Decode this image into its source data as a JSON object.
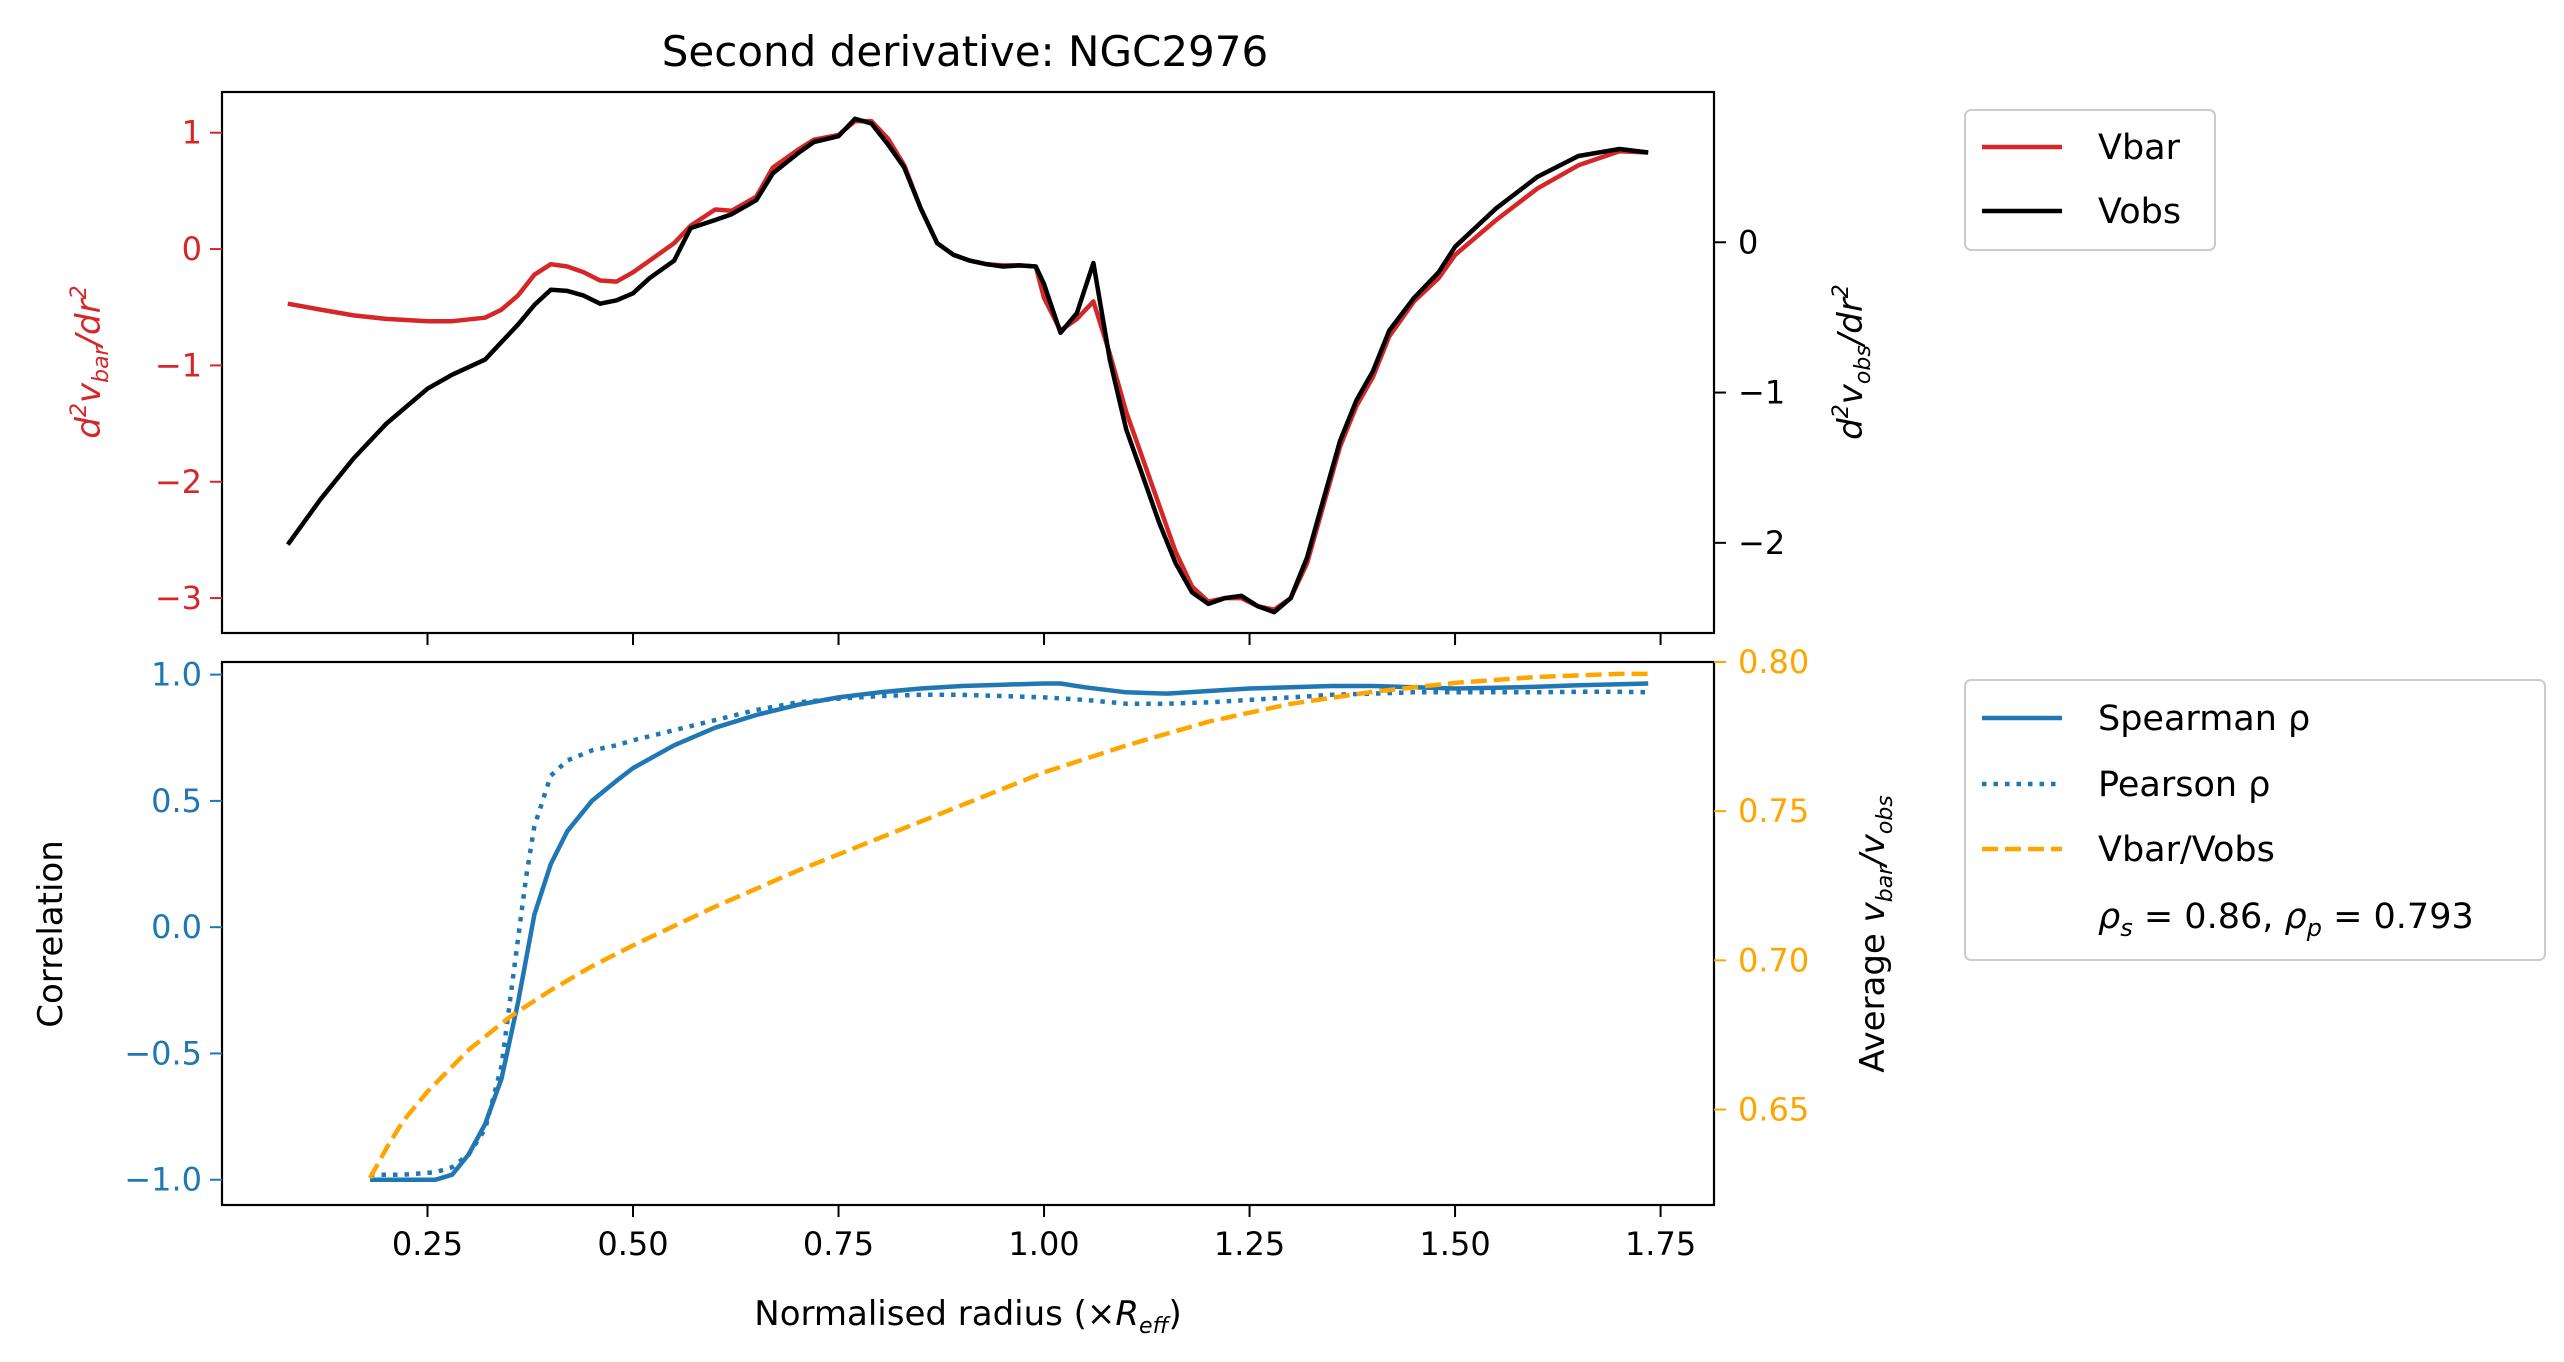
{
  "colors": {
    "vbar": "#d62728",
    "vobs": "#000000",
    "corr": "#1f77b4",
    "ratio": "#ffa500"
  },
  "chart_data": [
    {
      "type": "line",
      "title": "Second derivative: NGC2976",
      "ylabel_left": {
        "base": "d",
        "sup": "2",
        "v": "v",
        "sub": "bar",
        "rest": "/dr",
        "sup2": "2"
      },
      "ylabel_right": {
        "base": "d",
        "sup": "2",
        "v": "v",
        "sub": "obs",
        "rest": "/dr",
        "sup2": "2"
      },
      "xlim": [
        0.0,
        1.815
      ],
      "ylim_left": [
        -3.3,
        1.35
      ],
      "ylim_right": [
        -2.6,
        1.0
      ],
      "yticks_left": [
        1,
        0,
        -1,
        -2,
        -3
      ],
      "yticks_left_labels": [
        "1",
        "0",
        "−1",
        "−2",
        "−3"
      ],
      "yticks_right": [
        0,
        -1,
        -2
      ],
      "yticks_right_labels": [
        "0",
        "−1",
        "−2"
      ],
      "series": [
        {
          "name": "Vbar",
          "axis": "left",
          "style": "solid",
          "color": "#d62728",
          "x": [
            0.08,
            0.12,
            0.16,
            0.2,
            0.25,
            0.28,
            0.32,
            0.34,
            0.36,
            0.38,
            0.4,
            0.42,
            0.44,
            0.46,
            0.48,
            0.5,
            0.52,
            0.55,
            0.57,
            0.6,
            0.62,
            0.65,
            0.67,
            0.7,
            0.72,
            0.75,
            0.77,
            0.79,
            0.81,
            0.83,
            0.85,
            0.87,
            0.89,
            0.91,
            0.93,
            0.95,
            0.97,
            0.99,
            1.0,
            1.02,
            1.04,
            1.06,
            1.08,
            1.1,
            1.12,
            1.14,
            1.16,
            1.18,
            1.2,
            1.22,
            1.24,
            1.26,
            1.28,
            1.3,
            1.32,
            1.34,
            1.36,
            1.38,
            1.4,
            1.42,
            1.45,
            1.48,
            1.5,
            1.55,
            1.6,
            1.65,
            1.7,
            1.735
          ],
          "y": [
            -0.47,
            -0.52,
            -0.57,
            -0.6,
            -0.62,
            -0.62,
            -0.59,
            -0.52,
            -0.4,
            -0.22,
            -0.13,
            -0.15,
            -0.2,
            -0.27,
            -0.28,
            -0.2,
            -0.1,
            0.05,
            0.2,
            0.34,
            0.33,
            0.45,
            0.7,
            0.85,
            0.94,
            0.98,
            1.1,
            1.1,
            0.95,
            0.72,
            0.35,
            0.05,
            -0.05,
            -0.1,
            -0.13,
            -0.14,
            -0.14,
            -0.15,
            -0.42,
            -0.7,
            -0.6,
            -0.45,
            -0.9,
            -1.4,
            -1.8,
            -2.2,
            -2.6,
            -2.9,
            -3.03,
            -3.0,
            -3.0,
            -3.07,
            -3.1,
            -3.0,
            -2.7,
            -2.2,
            -1.7,
            -1.35,
            -1.1,
            -0.75,
            -0.45,
            -0.25,
            -0.05,
            0.25,
            0.52,
            0.72,
            0.84,
            0.83
          ]
        },
        {
          "name": "Vobs",
          "axis": "left",
          "style": "solid",
          "color": "#000000",
          "x": [
            0.08,
            0.12,
            0.16,
            0.2,
            0.25,
            0.28,
            0.32,
            0.34,
            0.36,
            0.38,
            0.4,
            0.42,
            0.44,
            0.46,
            0.48,
            0.5,
            0.52,
            0.55,
            0.57,
            0.6,
            0.62,
            0.65,
            0.67,
            0.7,
            0.72,
            0.75,
            0.77,
            0.79,
            0.81,
            0.83,
            0.85,
            0.87,
            0.89,
            0.91,
            0.93,
            0.95,
            0.97,
            0.99,
            1.0,
            1.02,
            1.04,
            1.06,
            1.08,
            1.1,
            1.12,
            1.14,
            1.16,
            1.18,
            1.2,
            1.22,
            1.24,
            1.26,
            1.28,
            1.3,
            1.32,
            1.34,
            1.36,
            1.38,
            1.4,
            1.42,
            1.45,
            1.48,
            1.5,
            1.55,
            1.6,
            1.65,
            1.7,
            1.735
          ],
          "y": [
            -2.54,
            -2.15,
            -1.8,
            -1.5,
            -1.2,
            -1.08,
            -0.95,
            -0.8,
            -0.65,
            -0.48,
            -0.35,
            -0.36,
            -0.4,
            -0.47,
            -0.44,
            -0.38,
            -0.25,
            -0.1,
            0.18,
            0.25,
            0.3,
            0.42,
            0.65,
            0.82,
            0.92,
            0.97,
            1.12,
            1.08,
            0.9,
            0.7,
            0.35,
            0.05,
            -0.05,
            -0.1,
            -0.13,
            -0.15,
            -0.14,
            -0.15,
            -0.3,
            -0.72,
            -0.55,
            -0.12,
            -0.95,
            -1.55,
            -1.95,
            -2.35,
            -2.7,
            -2.95,
            -3.05,
            -3.0,
            -2.98,
            -3.07,
            -3.12,
            -3.0,
            -2.65,
            -2.15,
            -1.65,
            -1.3,
            -1.05,
            -0.7,
            -0.42,
            -0.2,
            0.02,
            0.35,
            0.62,
            0.8,
            0.86,
            0.83
          ]
        }
      ],
      "legend": {
        "placement": "outside-upper-right",
        "entries": [
          "Vbar",
          "Vobs"
        ]
      }
    },
    {
      "type": "line",
      "title": "",
      "xlabel": {
        "text": "Normalised radius (×",
        "R": "R",
        "sub": "eff",
        "close": ")"
      },
      "ylabel_left": "Correlation",
      "ylabel_right": {
        "text": "Average ",
        "v1": "v",
        "sub1": "bar",
        "slash": "/",
        "v2": "v",
        "sub2": "obs"
      },
      "xlim": [
        0.0,
        1.815
      ],
      "xticks": [
        0.25,
        0.5,
        0.75,
        1.0,
        1.25,
        1.5,
        1.75
      ],
      "xtick_labels": [
        "0.25",
        "0.50",
        "0.75",
        "1.00",
        "1.25",
        "1.50",
        "1.75"
      ],
      "ylim_left": [
        -1.1,
        1.05
      ],
      "ylim_right": [
        0.618,
        0.8
      ],
      "yticks_left": [
        1.0,
        0.5,
        0.0,
        -0.5,
        -1.0
      ],
      "yticks_left_labels": [
        "1.0",
        "0.5",
        "0.0",
        "−0.5",
        "−1.0"
      ],
      "yticks_right": [
        0.8,
        0.75,
        0.7,
        0.65
      ],
      "yticks_right_labels": [
        "0.80",
        "0.75",
        "0.70",
        "0.65"
      ],
      "series": [
        {
          "name": "Spearman ρ",
          "axis": "left",
          "style": "solid",
          "color": "#1f77b4",
          "x": [
            0.18,
            0.22,
            0.26,
            0.28,
            0.3,
            0.32,
            0.34,
            0.36,
            0.38,
            0.4,
            0.42,
            0.45,
            0.48,
            0.5,
            0.55,
            0.6,
            0.65,
            0.7,
            0.75,
            0.8,
            0.85,
            0.9,
            0.95,
            1.0,
            1.02,
            1.05,
            1.1,
            1.15,
            1.2,
            1.25,
            1.3,
            1.35,
            1.4,
            1.45,
            1.5,
            1.55,
            1.6,
            1.65,
            1.7,
            1.735
          ],
          "y": [
            -1.0,
            -1.0,
            -1.0,
            -0.98,
            -0.9,
            -0.78,
            -0.6,
            -0.3,
            0.05,
            0.25,
            0.38,
            0.5,
            0.58,
            0.63,
            0.72,
            0.79,
            0.84,
            0.88,
            0.91,
            0.93,
            0.945,
            0.955,
            0.96,
            0.965,
            0.965,
            0.95,
            0.93,
            0.925,
            0.935,
            0.945,
            0.95,
            0.955,
            0.955,
            0.95,
            0.945,
            0.948,
            0.952,
            0.958,
            0.962,
            0.965
          ]
        },
        {
          "name": "Pearson ρ",
          "axis": "left",
          "style": "dotted",
          "color": "#1f77b4",
          "x": [
            0.18,
            0.22,
            0.26,
            0.28,
            0.3,
            0.32,
            0.34,
            0.36,
            0.37,
            0.38,
            0.4,
            0.42,
            0.45,
            0.48,
            0.5,
            0.55,
            0.6,
            0.65,
            0.7,
            0.75,
            0.8,
            0.85,
            0.9,
            0.95,
            1.0,
            1.05,
            1.1,
            1.15,
            1.2,
            1.25,
            1.3,
            1.35,
            1.4,
            1.45,
            1.5,
            1.55,
            1.6,
            1.65,
            1.7,
            1.735
          ],
          "y": [
            -0.98,
            -0.98,
            -0.97,
            -0.95,
            -0.9,
            -0.8,
            -0.55,
            -0.05,
            0.2,
            0.4,
            0.6,
            0.66,
            0.7,
            0.72,
            0.74,
            0.78,
            0.82,
            0.86,
            0.89,
            0.905,
            0.915,
            0.92,
            0.92,
            0.915,
            0.91,
            0.9,
            0.885,
            0.885,
            0.89,
            0.9,
            0.91,
            0.92,
            0.925,
            0.93,
            0.93,
            0.93,
            0.93,
            0.932,
            0.932,
            0.93
          ]
        },
        {
          "name": "Vbar/Vobs",
          "axis": "right",
          "style": "dashed",
          "color": "#ffa500",
          "x": [
            0.18,
            0.2,
            0.22,
            0.25,
            0.3,
            0.35,
            0.4,
            0.45,
            0.5,
            0.6,
            0.7,
            0.8,
            0.9,
            1.0,
            1.1,
            1.2,
            1.3,
            1.4,
            1.5,
            1.6,
            1.7,
            1.735
          ],
          "y": [
            0.627,
            0.637,
            0.646,
            0.656,
            0.67,
            0.681,
            0.69,
            0.698,
            0.705,
            0.718,
            0.73,
            0.741,
            0.752,
            0.763,
            0.772,
            0.78,
            0.786,
            0.79,
            0.793,
            0.795,
            0.796,
            0.796
          ]
        }
      ],
      "legend": {
        "placement": "outside-upper-right",
        "entries": [
          "Spearman ρ",
          "Pearson ρ",
          "Vbar/Vobs"
        ],
        "stat": {
          "rho": "ρ",
          "s": "s",
          "val_s": " = 0.86, ",
          "p": "p",
          "val_p": " = 0.793"
        }
      }
    }
  ]
}
